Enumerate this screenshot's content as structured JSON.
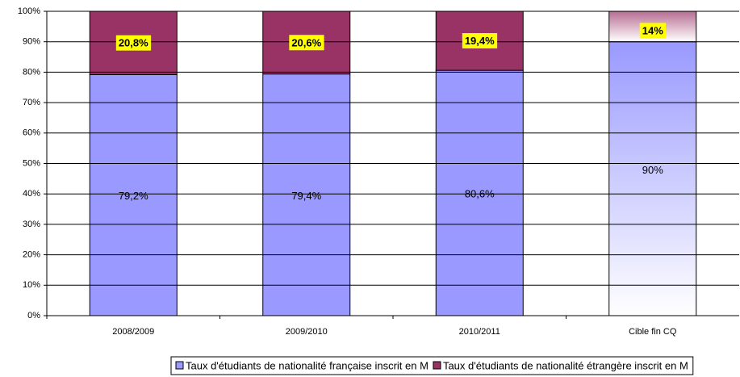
{
  "chart_data": {
    "type": "bar",
    "stacked": true,
    "categories": [
      "2008/2009",
      "2009/2010",
      "2010/2011",
      "Cible fin CQ"
    ],
    "series": [
      {
        "name": "Taux d'étudiants de nationalité française inscrit en M",
        "color": "#9999ff",
        "values": [
          79.2,
          79.4,
          80.6,
          90
        ],
        "value_labels": [
          "79,2%",
          "79,4%",
          "80,6%",
          "90%"
        ]
      },
      {
        "name": "Taux d'étudiants de nationalité étrangère inscrit en M",
        "color": "#993366",
        "values": [
          20.8,
          20.6,
          19.4,
          14
        ],
        "value_labels": [
          "20,8%",
          "20,6%",
          "19,4%",
          "14%"
        ]
      }
    ],
    "ylim": [
      0,
      100
    ],
    "yticks": [
      {
        "value": 0,
        "label": "0%"
      },
      {
        "value": 10,
        "label": "10%"
      },
      {
        "value": 20,
        "label": "20%"
      },
      {
        "value": 30,
        "label": "30%"
      },
      {
        "value": 40,
        "label": "40%"
      },
      {
        "value": 50,
        "label": "50%"
      },
      {
        "value": 60,
        "label": "60%"
      },
      {
        "value": 70,
        "label": "70%"
      },
      {
        "value": 80,
        "label": "80%"
      },
      {
        "value": 90,
        "label": "90%"
      },
      {
        "value": 100,
        "label": "100%"
      }
    ],
    "grid": true,
    "legend": "bottom"
  }
}
